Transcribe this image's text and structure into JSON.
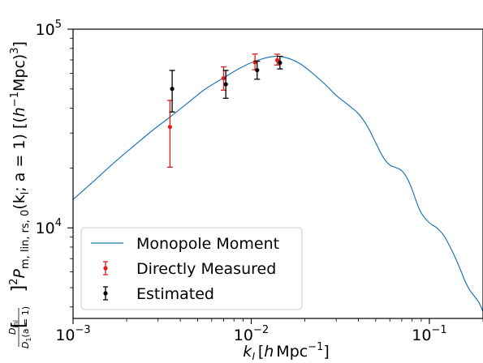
{
  "chart_data": {
    "type": "scatter",
    "xscale": "log",
    "yscale": "log",
    "xlim": [
      0.001,
      0.2
    ],
    "ylim": [
      3500,
      100000
    ],
    "grid": false,
    "legend_position": "lower-left",
    "xlabel_html": "k<tspan font-style='italic'>l</tspan>",
    "xlabel": "k_l [h Mpc^-1]",
    "ylabel": "[D_ini / D_1(a=1)]^2 P_m,lin,rs,0(k_l; a=1) [(h^-1 Mpc)^3]",
    "x_ticks": [
      {
        "value": 0.001,
        "base": "10",
        "exp": "−3"
      },
      {
        "value": 0.01,
        "base": "10",
        "exp": "−2"
      },
      {
        "value": 0.1,
        "base": "10",
        "exp": "−1"
      }
    ],
    "y_ticks": [
      {
        "value": 10000,
        "base": "10",
        "exp": "4"
      },
      {
        "value": 100000,
        "base": "10",
        "exp": "5"
      }
    ],
    "series": [
      {
        "name": "Monopole Moment",
        "kind": "line",
        "color": "#1f77b4",
        "x": [
          0.001,
          0.0013,
          0.0017,
          0.0022,
          0.0028,
          0.0035,
          0.0045,
          0.0055,
          0.007,
          0.0085,
          0.01,
          0.012,
          0.0135,
          0.015,
          0.017,
          0.019,
          0.022,
          0.026,
          0.03,
          0.035,
          0.04,
          0.045,
          0.05,
          0.055,
          0.06,
          0.065,
          0.07,
          0.075,
          0.08,
          0.085,
          0.09,
          0.1,
          0.11,
          0.12,
          0.13,
          0.14,
          0.15,
          0.16,
          0.17,
          0.18,
          0.19,
          0.2
        ],
        "y": [
          13900,
          17100,
          21300,
          25900,
          31000,
          36100,
          43200,
          49800,
          56900,
          63100,
          67800,
          71600,
          72900,
          72600,
          70100,
          66600,
          60200,
          52700,
          46400,
          41600,
          37500,
          32300,
          26800,
          22700,
          20700,
          20100,
          19400,
          17800,
          15600,
          13400,
          11900,
          10600,
          10000,
          9200,
          8100,
          7050,
          6100,
          5300,
          4800,
          4500,
          4200,
          3800
        ]
      },
      {
        "name": "Directly Measured",
        "kind": "errorbar",
        "color": "#e41a1c",
        "points": [
          {
            "x": 0.0035,
            "y": 32200,
            "ylo": 20200,
            "yhi": 43800
          },
          {
            "x": 0.007,
            "y": 56700,
            "ylo": 49300,
            "yhi": 64600
          },
          {
            "x": 0.0105,
            "y": 68200,
            "ylo": 62500,
            "yhi": 75000
          },
          {
            "x": 0.014,
            "y": 69800,
            "ylo": 66000,
            "yhi": 74800
          }
        ]
      },
      {
        "name": "Estimated",
        "kind": "errorbar",
        "color": "#000000",
        "points": [
          {
            "x": 0.0036,
            "y": 50100,
            "ylo": 38300,
            "yhi": 62000
          },
          {
            "x": 0.0072,
            "y": 52800,
            "ylo": 44900,
            "yhi": 62000
          },
          {
            "x": 0.0108,
            "y": 62200,
            "ylo": 56000,
            "yhi": 69000
          },
          {
            "x": 0.0145,
            "y": 67800,
            "ylo": 63100,
            "yhi": 73000
          }
        ]
      }
    ]
  },
  "text": {
    "xlabel_main": "k",
    "xlabel_sub": "l",
    "xlabel_units_open": "[",
    "xlabel_h": "h",
    "xlabel_mpc": "Mpc",
    "xlabel_exp": "−1",
    "xlabel_close": "]",
    "ylabel_frac_num": "D",
    "ylabel_frac_num_sub": "ini",
    "ylabel_frac_den": "D",
    "ylabel_frac_den_sub": "1",
    "ylabel_frac_den_arg": "(a = 1)",
    "ylabel_bracket_open": "[",
    "ylabel_bracket_close": "]",
    "ylabel_sq": "2",
    "ylabel_P": "P",
    "ylabel_P_sub": "m, lin, rs, 0",
    "ylabel_args": "(k",
    "ylabel_args_sub": "l",
    "ylabel_args_rest": "; a = 1) [(",
    "ylabel_h": "h",
    "ylabel_h_exp": "−1",
    "ylabel_mpc": "Mpc)",
    "ylabel_cube": "3",
    "ylabel_end": "]"
  }
}
